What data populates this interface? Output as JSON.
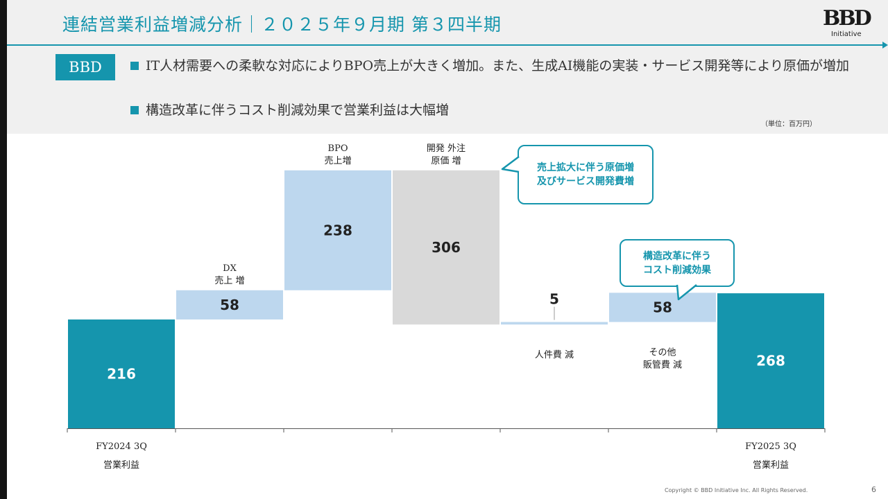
{
  "header": {
    "title": "連結営業利益増減分析｜２０２５年９月期 第３四半期",
    "logo_mark": "BBD",
    "logo_sub": "Initiative"
  },
  "summary": {
    "tag": "BBD",
    "bullets": [
      "IT人材需要への柔軟な対応によりBPO売上が大きく増加。また、生成AI機能の実装・サービス開発等により原価が増加",
      "構造改革に伴うコスト削減効果で営業利益は大幅増"
    ],
    "unit": "（単位：百万円）"
  },
  "chart_data": {
    "type": "bar",
    "subtype": "waterfall",
    "categories": [
      "FY2024 3Q 営業利益",
      "DX 売上 増",
      "BPO 売上増",
      "開発 外注 原価 増",
      "人件費 減",
      "その他 販管費 減",
      "FY2025 3Q 営業利益"
    ],
    "steps": [
      {
        "kind": "total",
        "value": 216,
        "label_lines": [],
        "xlabel_lines": [
          "FY2024 3Q",
          "営業利益"
        ],
        "color": "#1595ad"
      },
      {
        "kind": "delta",
        "value": 58,
        "label_lines": [
          "DX",
          "売上 増"
        ],
        "xlabel_lines": [],
        "color": "#bdd7ee"
      },
      {
        "kind": "delta",
        "value": 238,
        "label_lines": [
          "BPO",
          "売上増"
        ],
        "xlabel_lines": [],
        "color": "#bdd7ee"
      },
      {
        "kind": "delta",
        "value": -306,
        "label_lines": [
          "開発 外注",
          "原価 増"
        ],
        "xlabel_lines": [],
        "color": "#d9d9d9"
      },
      {
        "kind": "delta",
        "value": 5,
        "label_lines": [
          "人件費 減"
        ],
        "xlabel_lines": [],
        "color": "#bdd7ee"
      },
      {
        "kind": "delta",
        "value": 58,
        "label_lines": [
          "その他",
          "販管費 減"
        ],
        "xlabel_lines": [],
        "color": "#bdd7ee"
      },
      {
        "kind": "total",
        "value": 268,
        "label_lines": [],
        "xlabel_lines": [
          "FY2025 3Q",
          "営業利益"
        ],
        "color": "#1595ad"
      }
    ],
    "ylim": [
      0,
      560
    ],
    "grid": false,
    "legend": "none"
  },
  "callouts": [
    {
      "lines": [
        "売上拡大に伴う原価増",
        "及びサービス開発費増"
      ]
    },
    {
      "lines": [
        "構造改革に伴う",
        "コスト削減効果"
      ]
    }
  ],
  "footer": {
    "copyright": "Copyright © BBD Initiative Inc. All Rights Reserved.",
    "page": "6"
  }
}
